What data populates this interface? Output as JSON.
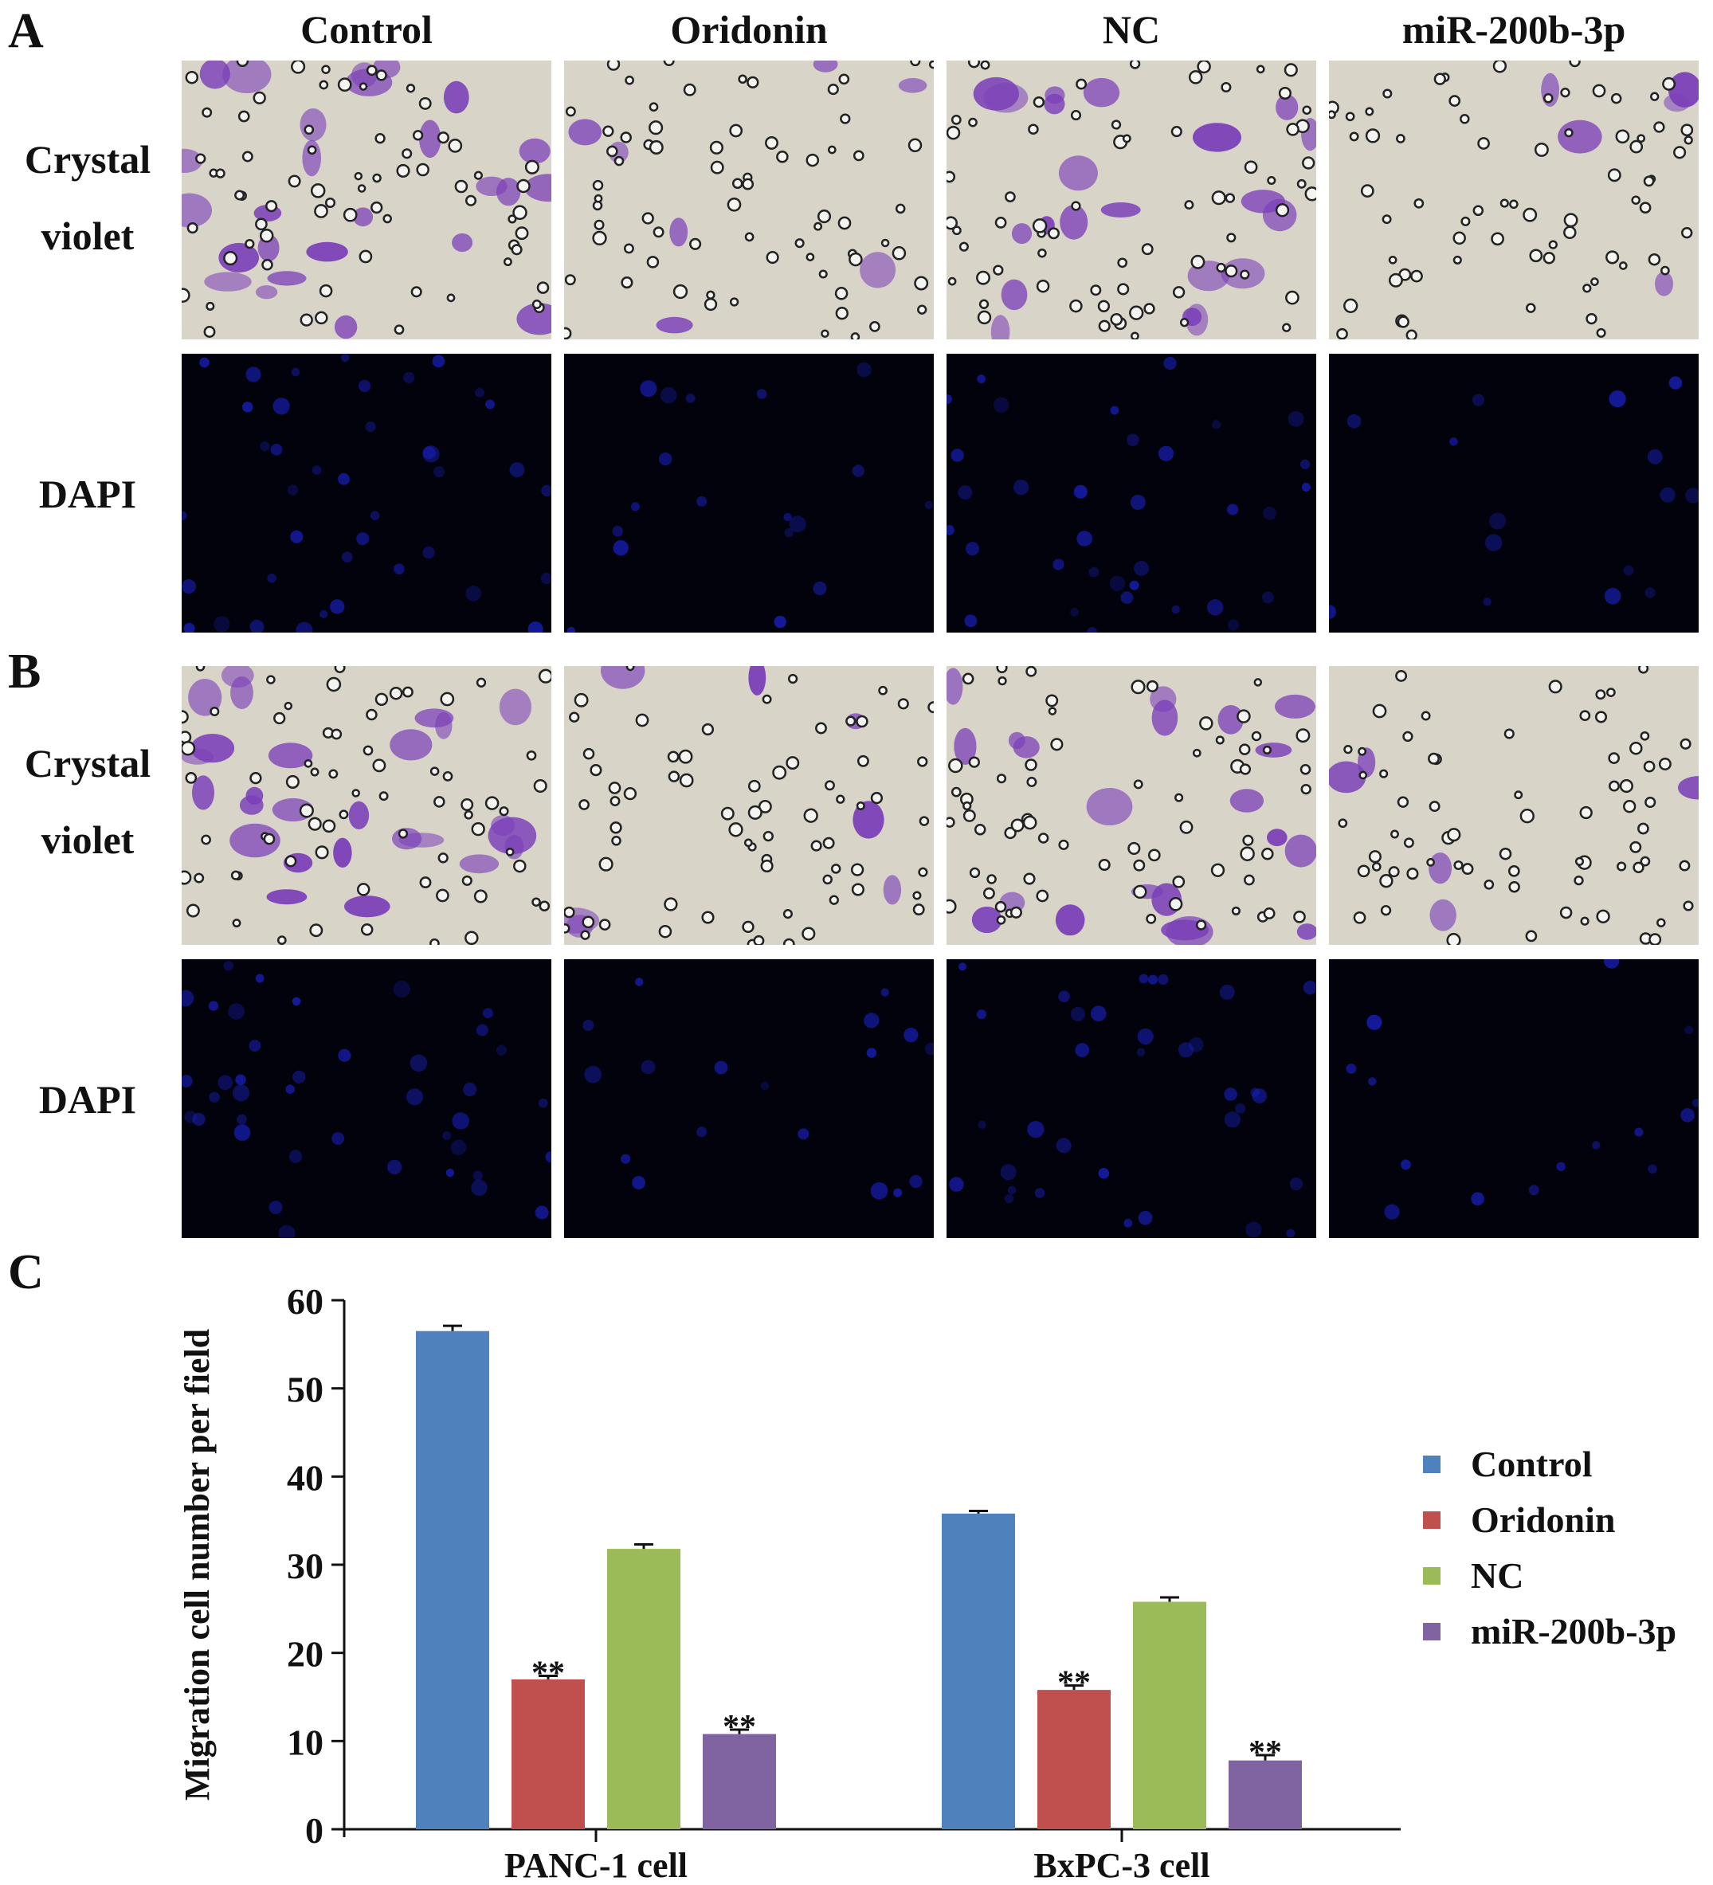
{
  "panels": {
    "A": "A",
    "B": "B",
    "C": "C"
  },
  "column_headers": [
    "Control",
    "Oridonin",
    "NC",
    "miR-200b-3p"
  ],
  "row_labels": {
    "crystal_violet": [
      "Crystal",
      "violet"
    ],
    "dapi": "DAPI"
  },
  "micrographs": {
    "crystal_violet_background": "#d8d4c8",
    "crystal_violet_stain": "#7b3fb8",
    "dapi_background": "#02020d",
    "dapi_stain": "#1a22c8"
  },
  "chart_data": {
    "type": "bar",
    "ylabel": "Migration cell number per field",
    "xlabel": "",
    "ylim": [
      0,
      60
    ],
    "yticks": [
      0,
      10,
      20,
      30,
      40,
      50,
      60
    ],
    "categories": [
      "PANC-1 cell",
      "BxPC-3 cell"
    ],
    "legend_position": "right",
    "series": [
      {
        "name": "Control",
        "color": "#4f81bd",
        "values": [
          56.5,
          35.8
        ],
        "errors": [
          0.6,
          0.3
        ],
        "significance": [
          "",
          ""
        ]
      },
      {
        "name": "Oridonin",
        "color": "#c0504d",
        "values": [
          17.0,
          15.8
        ],
        "errors": [
          0.4,
          0.5
        ],
        "significance": [
          "**",
          "**"
        ]
      },
      {
        "name": "NC",
        "color": "#9bbb59",
        "values": [
          31.8,
          25.8
        ],
        "errors": [
          0.5,
          0.5
        ],
        "significance": [
          "",
          ""
        ]
      },
      {
        "name": "miR-200b-3p",
        "color": "#8064a2",
        "values": [
          10.8,
          7.8
        ],
        "errors": [
          0.5,
          0.6
        ],
        "significance": [
          "**",
          "**"
        ]
      }
    ]
  }
}
